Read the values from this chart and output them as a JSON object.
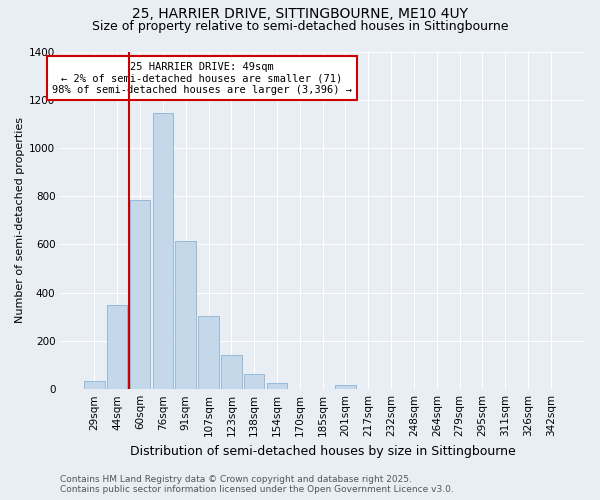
{
  "title": "25, HARRIER DRIVE, SITTINGBOURNE, ME10 4UY",
  "subtitle": "Size of property relative to semi-detached houses in Sittingbourne",
  "xlabel": "Distribution of semi-detached houses by size in Sittingbourne",
  "ylabel": "Number of semi-detached properties",
  "categories": [
    "29sqm",
    "44sqm",
    "60sqm",
    "76sqm",
    "91sqm",
    "107sqm",
    "123sqm",
    "138sqm",
    "154sqm",
    "170sqm",
    "185sqm",
    "201sqm",
    "217sqm",
    "232sqm",
    "248sqm",
    "264sqm",
    "279sqm",
    "295sqm",
    "311sqm",
    "326sqm",
    "342sqm"
  ],
  "values": [
    35,
    350,
    785,
    1145,
    615,
    305,
    140,
    65,
    25,
    0,
    0,
    18,
    0,
    0,
    0,
    0,
    0,
    0,
    0,
    0,
    0
  ],
  "bar_color": "#c5d8ea",
  "bar_edge_color": "#8ab4d4",
  "red_line_x": 1.5,
  "annotation_title": "25 HARRIER DRIVE: 49sqm",
  "annotation_line1": "← 2% of semi-detached houses are smaller (71)",
  "annotation_line2": "98% of semi-detached houses are larger (3,396) →",
  "annotation_box_color": "#cc0000",
  "ylim": [
    0,
    1400
  ],
  "yticks": [
    0,
    200,
    400,
    600,
    800,
    1000,
    1200,
    1400
  ],
  "background_color": "#e8eef4",
  "grid_color": "#ffffff",
  "footer_line1": "Contains HM Land Registry data © Crown copyright and database right 2025.",
  "footer_line2": "Contains public sector information licensed under the Open Government Licence v3.0.",
  "title_fontsize": 10,
  "subtitle_fontsize": 9,
  "xlabel_fontsize": 9,
  "ylabel_fontsize": 8,
  "tick_fontsize": 7.5,
  "footer_fontsize": 6.5,
  "ann_fontsize": 7.5
}
